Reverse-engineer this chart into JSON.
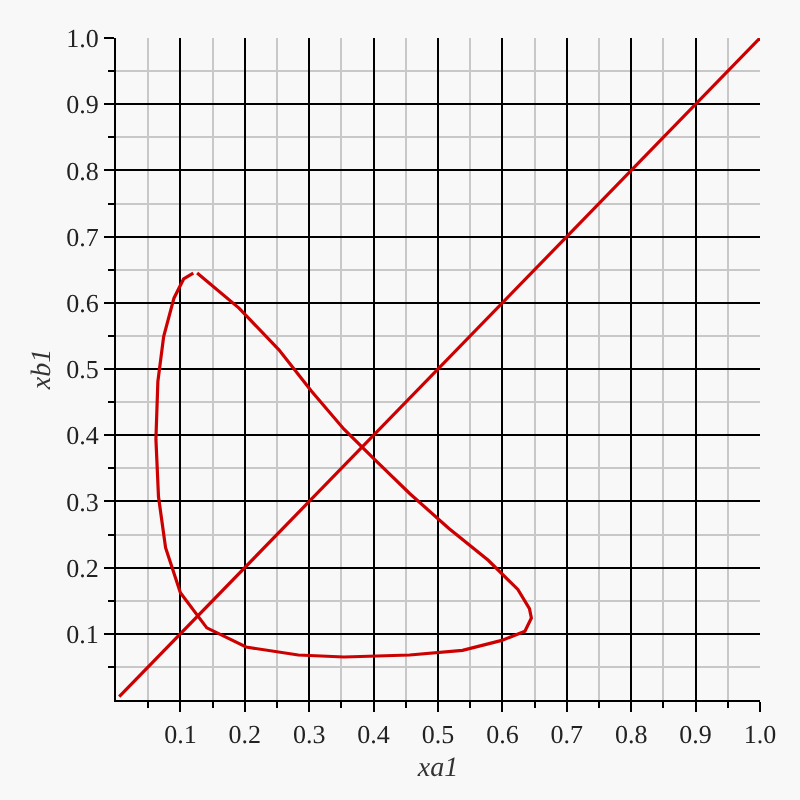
{
  "chart_data": {
    "type": "line",
    "xlabel": "xa1",
    "ylabel": "xb1",
    "xlim": [
      0,
      1
    ],
    "ylim": [
      0,
      1
    ],
    "xticks": [
      {
        "value": 0.05,
        "label": null
      },
      0.1,
      {
        "value": 0.15,
        "label": null
      },
      0.2,
      {
        "value": 0.25,
        "label": null
      },
      0.3,
      {
        "value": 0.35,
        "label": null
      },
      0.4,
      {
        "value": 0.45,
        "label": null
      },
      0.5,
      {
        "value": 0.55,
        "label": null
      },
      0.6,
      {
        "value": 0.65,
        "label": null
      },
      0.7,
      {
        "value": 0.75,
        "label": null
      },
      0.8,
      {
        "value": 0.85,
        "label": null
      },
      0.9,
      {
        "value": 0.95,
        "label": null
      },
      {
        "value": 1,
        "label": "1.0"
      }
    ],
    "yticks": [
      {
        "value": 0.05,
        "label": null
      },
      0.1,
      {
        "value": 0.15,
        "label": null
      },
      0.2,
      {
        "value": 0.25,
        "label": null
      },
      0.3,
      {
        "value": 0.35,
        "label": null
      },
      0.4,
      {
        "value": 0.45,
        "label": null
      },
      0.5,
      {
        "value": 0.55,
        "label": null
      },
      0.6,
      {
        "value": 0.65,
        "label": null
      },
      0.7,
      {
        "value": 0.75,
        "label": null
      },
      0.8,
      {
        "value": 0.85,
        "label": null
      },
      0.9,
      {
        "value": 0.95,
        "label": null
      },
      {
        "value": 1,
        "label": "1.0"
      }
    ],
    "grid": true,
    "marker": "none",
    "line_style": "solid",
    "series": [
      {
        "color": "#cc0000",
        "x": [
          0.005,
          1
        ],
        "values": [
          0.005,
          1
        ]
      },
      {
        "color": "#cc0000",
        "x": [
          0.126,
          0.191,
          0.253,
          0.303,
          0.354,
          0.405,
          0.456,
          0.517,
          0.578,
          0.624,
          0.642,
          0.645,
          0.635,
          0.599,
          0.538,
          0.456,
          0.354,
          0.283,
          0.202,
          0.141,
          0.1,
          0.077,
          0.066,
          0.062,
          0.065,
          0.074,
          0.09,
          0.105,
          0.12
        ],
        "values": [
          0.645,
          0.592,
          0.529,
          0.467,
          0.409,
          0.36,
          0.312,
          0.259,
          0.211,
          0.167,
          0.138,
          0.124,
          0.104,
          0.09,
          0.075,
          0.068,
          0.065,
          0.068,
          0.08,
          0.109,
          0.162,
          0.23,
          0.307,
          0.394,
          0.481,
          0.549,
          0.607,
          0.636,
          0.645
        ]
      }
    ]
  }
}
